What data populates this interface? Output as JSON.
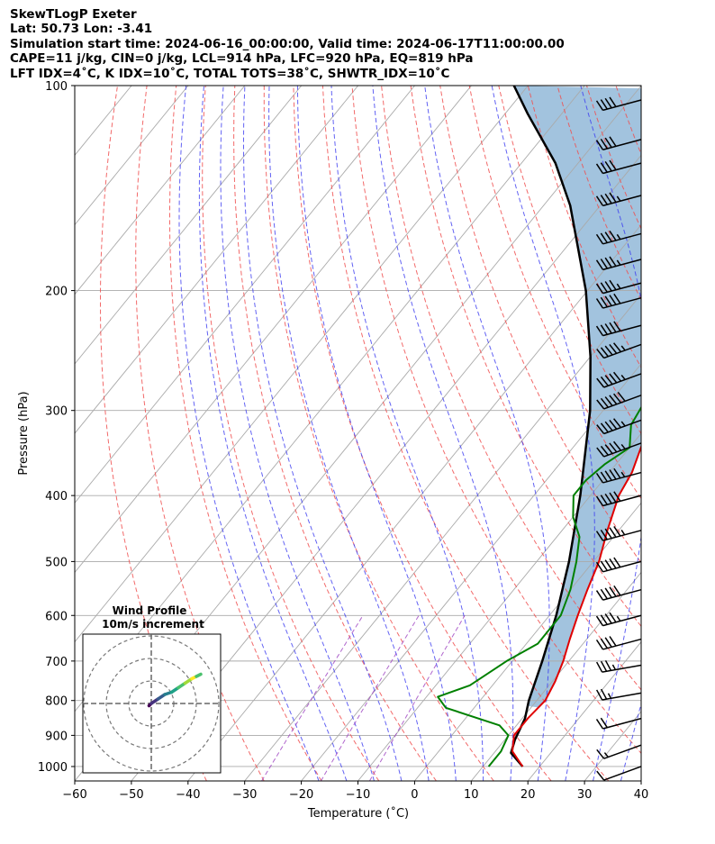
{
  "header": {
    "line1": "SkewTLogP Exeter",
    "line2": "Lat: 50.73   Lon: -3.41",
    "line3": "Simulation start time: 2024-06-16_00:00:00, Valid time: 2024-06-17T11:00:00.00",
    "line4": "CAPE=11 j/kg, CIN=0 j/kg, LCL=914 hPa, LFC=920 hPa, EQ=819 hPa",
    "line5": "LFT IDX=4˚C, K IDX=10˚C, TOTAL TOTS=38˚C, SHWTR_IDX=10˚C"
  },
  "chart_data": {
    "type": "line",
    "subtype": "skew-t log-p",
    "xlabel": "Temperature (˚C)",
    "ylabel": "Pressure (hPa)",
    "xlim": [
      -60,
      40
    ],
    "ylim": [
      1050,
      100
    ],
    "x_ticks": [
      "−60",
      "−50",
      "−40",
      "−30",
      "−20",
      "−10",
      "0",
      "10",
      "20",
      "30",
      "40"
    ],
    "y_ticks": [
      "100",
      "200",
      "300",
      "400",
      "500",
      "600",
      "700",
      "800",
      "900",
      "1000"
    ],
    "grid": true,
    "colors": {
      "temperature": "#e00000",
      "dewpoint": "#008000",
      "parcel": "#000000",
      "cape_fill": "#7aa9d0",
      "dry_adiabat": "#f05050",
      "moist_adiabat": "#3b3bf0",
      "mixing_ratio": "#9c40c0",
      "isotherm": "#aaaaaa"
    },
    "series": [
      {
        "key": "temperature",
        "points": [
          [
            17,
            1000
          ],
          [
            13,
            950
          ],
          [
            11,
            900
          ],
          [
            11,
            850
          ],
          [
            11.5,
            800
          ],
          [
            10.5,
            750
          ],
          [
            9,
            700
          ],
          [
            7,
            650
          ],
          [
            5,
            600
          ],
          [
            3,
            550
          ],
          [
            1,
            500
          ],
          [
            -2,
            450
          ],
          [
            -5,
            400
          ],
          [
            -6,
            370
          ],
          [
            -8,
            340
          ],
          [
            -11,
            300
          ],
          [
            -12,
            280
          ],
          [
            -13,
            260
          ],
          [
            -13,
            250
          ],
          [
            -12,
            240
          ],
          [
            -9,
            225
          ],
          [
            -6,
            210
          ],
          [
            -2,
            195
          ],
          [
            2,
            180
          ],
          [
            6,
            165
          ],
          [
            8,
            150
          ],
          [
            10,
            135
          ],
          [
            12,
            122
          ],
          [
            13,
            112
          ],
          [
            14,
            100
          ]
        ]
      },
      {
        "key": "dewpoint",
        "points": [
          [
            11,
            1000
          ],
          [
            11,
            950
          ],
          [
            10,
            900
          ],
          [
            7,
            870
          ],
          [
            -5,
            820
          ],
          [
            -8,
            790
          ],
          [
            -4,
            760
          ],
          [
            -1,
            700
          ],
          [
            2,
            660
          ],
          [
            2,
            600
          ],
          [
            0,
            550
          ],
          [
            -3,
            500
          ],
          [
            -6,
            460
          ],
          [
            -10,
            430
          ],
          [
            -13,
            400
          ],
          [
            -13,
            380
          ],
          [
            -12,
            360
          ],
          [
            -10,
            340
          ],
          [
            -13,
            315
          ],
          [
            -14,
            290
          ],
          [
            -13,
            270
          ],
          [
            -15,
            245
          ],
          [
            -19,
            210
          ],
          [
            -22,
            190
          ],
          [
            -25,
            180
          ],
          [
            -25,
            170
          ],
          [
            -22,
            150
          ],
          [
            -17,
            130
          ],
          [
            -13,
            115
          ],
          [
            -10,
            100
          ]
        ]
      },
      {
        "key": "parcel",
        "points": [
          [
            17,
            1000
          ],
          [
            13,
            955
          ],
          [
            11.8,
            914
          ],
          [
            10.5,
            850
          ],
          [
            8.6,
            800
          ],
          [
            5.3,
            700
          ],
          [
            1.2,
            600
          ],
          [
            -4.3,
            500
          ],
          [
            -11.8,
            400
          ],
          [
            -22.3,
            300
          ],
          [
            -30,
            250
          ],
          [
            -40.3,
            200
          ],
          [
            -55.3,
            150
          ],
          [
            -64,
            130
          ],
          [
            -76,
            110
          ],
          [
            -82.5,
            100
          ]
        ]
      }
    ],
    "wind_barbs": {
      "pressures": [
        1000,
        930,
        850,
        780,
        710,
        650,
        600,
        550,
        500,
        450,
        400,
        370,
        335,
        310,
        285,
        265,
        240,
        225,
        205,
        195,
        180,
        165,
        145,
        130,
        120,
        105
      ],
      "speeds_kt": [
        10,
        15,
        20,
        25,
        35,
        40,
        45,
        50,
        50,
        55,
        50,
        55,
        55,
        55,
        60,
        55,
        55,
        50,
        50,
        45,
        45,
        45,
        45,
        40,
        40,
        40
      ],
      "dirs_deg": [
        250,
        250,
        255,
        260,
        260,
        255,
        255,
        255,
        255,
        255,
        255,
        255,
        250,
        250,
        250,
        250,
        250,
        255,
        255,
        255,
        255,
        255,
        255,
        255,
        255,
        255
      ]
    },
    "hodograph": {
      "title": "Wind Profile",
      "subtitle": "10m/s increment",
      "rings": [
        10,
        20,
        30
      ],
      "u": [
        -1,
        0,
        3,
        6,
        9,
        12,
        15,
        18,
        20,
        22
      ],
      "v": [
        -1,
        0,
        2,
        4,
        5,
        7,
        9,
        11,
        12,
        13
      ]
    }
  }
}
